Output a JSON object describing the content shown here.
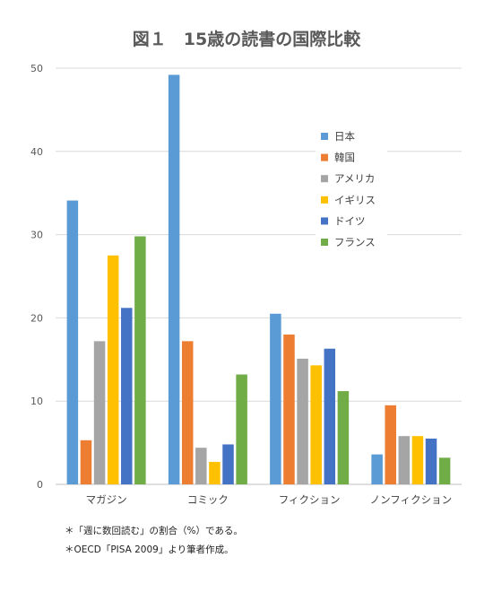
{
  "chart_data": {
    "type": "bar",
    "title": "図１　15歳の読書の国際比較",
    "categories": [
      "マガジン",
      "コミック",
      "フィクション",
      "ノンフィクション"
    ],
    "ylim": [
      0,
      50
    ],
    "yticks": [
      0,
      10,
      20,
      30,
      40,
      50
    ],
    "grid": true,
    "legend_position": "right",
    "series": [
      {
        "name": "日本",
        "color": "#5B9BD5",
        "values": [
          34.1,
          49.2,
          20.5,
          3.6
        ]
      },
      {
        "name": "韓国",
        "color": "#ED7D31",
        "values": [
          5.3,
          17.2,
          18.0,
          9.5
        ]
      },
      {
        "name": "アメリカ",
        "color": "#A5A5A5",
        "values": [
          17.2,
          4.4,
          15.1,
          5.8
        ]
      },
      {
        "name": "イギリス",
        "color": "#FFC000",
        "values": [
          27.5,
          2.7,
          14.3,
          5.8
        ]
      },
      {
        "name": "ドイツ",
        "color": "#4472C4",
        "values": [
          21.2,
          4.8,
          16.3,
          5.5
        ]
      },
      {
        "name": "フランス",
        "color": "#70AD47",
        "values": [
          29.8,
          13.2,
          11.2,
          3.2
        ]
      }
    ]
  },
  "notes": [
    "＊「週に数回読む」の割合（%）である。",
    "＊OECD「PISA 2009」より筆者作成。"
  ]
}
